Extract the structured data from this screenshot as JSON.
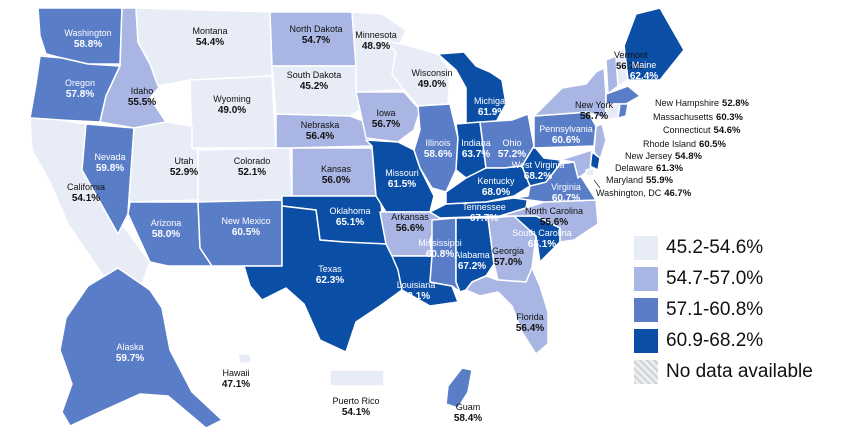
{
  "colors": {
    "bin1": "#e7ecf6",
    "bin2": "#a9b6e3",
    "bin3": "#5a7dc8",
    "bin4": "#0b4ea6",
    "nodata": "hatched-gray"
  },
  "legend": [
    {
      "label": "45.2-54.6%",
      "bin": "bin1"
    },
    {
      "label": "54.7-57.0%",
      "bin": "bin2"
    },
    {
      "label": "57.1-60.8%",
      "bin": "bin3"
    },
    {
      "label": "60.9-68.2%",
      "bin": "bin4"
    },
    {
      "label": "No data available",
      "bin": "nodata"
    }
  ],
  "regions": [
    {
      "id": "washington",
      "name": "Washington",
      "value": "58.8%",
      "bin": "bin3"
    },
    {
      "id": "oregon",
      "name": "Oregon",
      "value": "57.8%",
      "bin": "bin3"
    },
    {
      "id": "california",
      "name": "California",
      "value": "54.1%",
      "bin": "bin1"
    },
    {
      "id": "nevada",
      "name": "Nevada",
      "value": "59.8%",
      "bin": "bin3"
    },
    {
      "id": "idaho",
      "name": "Idaho",
      "value": "55.5%",
      "bin": "bin2"
    },
    {
      "id": "montana",
      "name": "Montana",
      "value": "54.4%",
      "bin": "bin1"
    },
    {
      "id": "wyoming",
      "name": "Wyoming",
      "value": "49.0%",
      "bin": "bin1"
    },
    {
      "id": "utah",
      "name": "Utah",
      "value": "52.9%",
      "bin": "bin1"
    },
    {
      "id": "colorado",
      "name": "Colorado",
      "value": "52.1%",
      "bin": "bin1"
    },
    {
      "id": "arizona",
      "name": "Arizona",
      "value": "58.0%",
      "bin": "bin3"
    },
    {
      "id": "newmexico",
      "name": "New Mexico",
      "value": "60.5%",
      "bin": "bin3"
    },
    {
      "id": "northdakota",
      "name": "North Dakota",
      "value": "54.7%",
      "bin": "bin2"
    },
    {
      "id": "southdakota",
      "name": "South Dakota",
      "value": "45.2%",
      "bin": "bin1"
    },
    {
      "id": "nebraska",
      "name": "Nebraska",
      "value": "56.4%",
      "bin": "bin2"
    },
    {
      "id": "kansas",
      "name": "Kansas",
      "value": "56.0%",
      "bin": "bin2"
    },
    {
      "id": "oklahoma",
      "name": "Oklahoma",
      "value": "65.1%",
      "bin": "bin4"
    },
    {
      "id": "texas",
      "name": "Texas",
      "value": "62.3%",
      "bin": "bin4"
    },
    {
      "id": "minnesota",
      "name": "Minnesota",
      "value": "48.9%",
      "bin": "bin1"
    },
    {
      "id": "iowa",
      "name": "Iowa",
      "value": "56.7%",
      "bin": "bin2"
    },
    {
      "id": "missouri",
      "name": "Missouri",
      "value": "61.5%",
      "bin": "bin4"
    },
    {
      "id": "arkansas",
      "name": "Arkansas",
      "value": "56.6%",
      "bin": "bin2"
    },
    {
      "id": "louisiana",
      "name": "Louisiana",
      "value": "63.1%",
      "bin": "bin4"
    },
    {
      "id": "wisconsin",
      "name": "Wisconsin",
      "value": "49.0%",
      "bin": "bin1"
    },
    {
      "id": "illinois",
      "name": "Illinois",
      "value": "58.6%",
      "bin": "bin3"
    },
    {
      "id": "michigan",
      "name": "Michigan",
      "value": "61.9%",
      "bin": "bin4"
    },
    {
      "id": "indiana",
      "name": "Indiana",
      "value": "63.7%",
      "bin": "bin4"
    },
    {
      "id": "ohio",
      "name": "Ohio",
      "value": "57.2%",
      "bin": "bin3"
    },
    {
      "id": "kentucky",
      "name": "Kentucky",
      "value": "68.0%",
      "bin": "bin4"
    },
    {
      "id": "tennessee",
      "name": "Tennessee",
      "value": "67.7%",
      "bin": "bin4"
    },
    {
      "id": "mississippi",
      "name": "Mississippi",
      "value": "60.8%",
      "bin": "bin3"
    },
    {
      "id": "alabama",
      "name": "Alabama",
      "value": "67.2%",
      "bin": "bin4"
    },
    {
      "id": "georgia",
      "name": "Georgia",
      "value": "57.0%",
      "bin": "bin2"
    },
    {
      "id": "florida",
      "name": "Florida",
      "value": "56.4%",
      "bin": "bin2"
    },
    {
      "id": "southcarolina",
      "name": "South Carolina",
      "value": "65.1%",
      "bin": "bin4"
    },
    {
      "id": "northcarolina",
      "name": "North Carolina",
      "value": "55.6%",
      "bin": "bin2"
    },
    {
      "id": "virginia",
      "name": "Virginia",
      "value": "60.7%",
      "bin": "bin3"
    },
    {
      "id": "westvirginia",
      "name": "West Virginia",
      "value": "68.2%",
      "bin": "bin4"
    },
    {
      "id": "pennsylvania",
      "name": "Pennsylvania",
      "value": "60.6%",
      "bin": "bin3"
    },
    {
      "id": "newyork",
      "name": "New York",
      "value": "56.7%",
      "bin": "bin2"
    },
    {
      "id": "vermont",
      "name": "Vermont",
      "value": "56.7%",
      "bin": "bin2"
    },
    {
      "id": "maine",
      "name": "Maine",
      "value": "62.4%",
      "bin": "bin4"
    },
    {
      "id": "newhampshire",
      "name": "New Hampshire",
      "value": "52.8%",
      "bin": "bin1"
    },
    {
      "id": "massachusetts",
      "name": "Massachusetts",
      "value": "60.3%",
      "bin": "bin3"
    },
    {
      "id": "connecticut",
      "name": "Connecticut",
      "value": "54.6%",
      "bin": "bin1"
    },
    {
      "id": "rhodeisland",
      "name": "Rhode Island",
      "value": "60.5%",
      "bin": "bin3"
    },
    {
      "id": "newjersey",
      "name": "New Jersey",
      "value": "54.8%",
      "bin": "bin2"
    },
    {
      "id": "delaware",
      "name": "Delaware",
      "value": "61.3%",
      "bin": "bin4"
    },
    {
      "id": "maryland",
      "name": "Maryland",
      "value": "55.9%",
      "bin": "bin2"
    },
    {
      "id": "dc",
      "name": "Washington, DC",
      "value": "46.7%",
      "bin": "bin1"
    },
    {
      "id": "alaska",
      "name": "Alaska",
      "value": "59.7%",
      "bin": "bin3"
    },
    {
      "id": "hawaii",
      "name": "Hawaii",
      "value": "47.1%",
      "bin": "bin1"
    },
    {
      "id": "puertorico",
      "name": "Puerto Rico",
      "value": "54.1%",
      "bin": "bin1"
    },
    {
      "id": "guam",
      "name": "Guam",
      "value": "58.4%",
      "bin": "bin3"
    }
  ]
}
